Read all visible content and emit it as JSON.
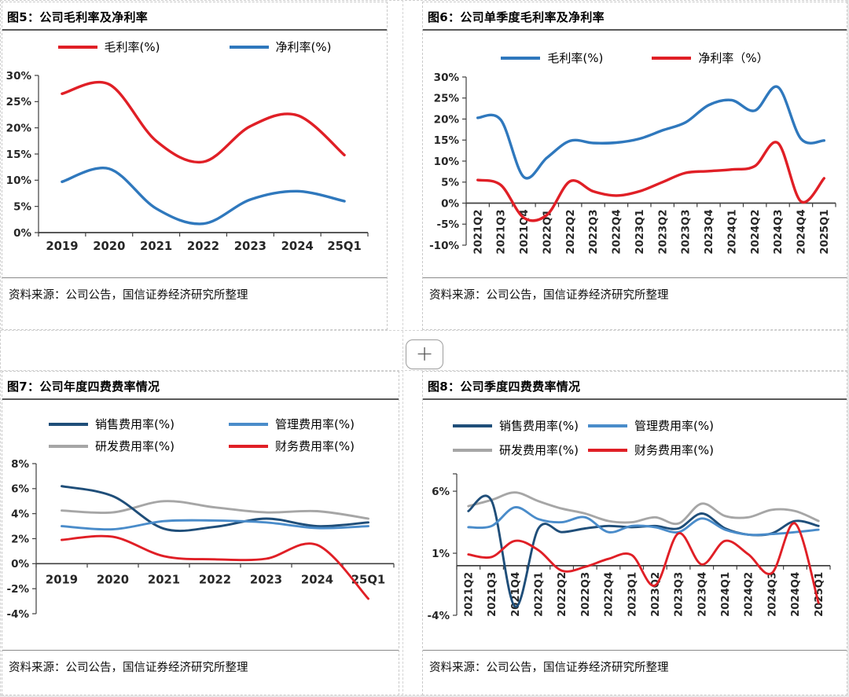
{
  "page": {
    "plus_button_label": "+"
  },
  "panels": [
    {
      "id": "fig5",
      "title": "图5：公司毛利率及净利率",
      "source": "资料来源：公司公告，国信证券经济研究所整理"
    },
    {
      "id": "fig6",
      "title": "图6：公司单季度毛利率及净利率",
      "source": "资料来源：公司公告，国信证券经济研究所整理"
    },
    {
      "id": "fig7",
      "title": "图7：公司年度四费费率情况",
      "source": "资料来源：公司公告，国信证券经济研究所整理"
    },
    {
      "id": "fig8",
      "title": "图8：公司季度四费费率情况",
      "source": "资料来源：公司公告，国信证券经济研究所整理"
    }
  ],
  "chart_data": [
    {
      "type": "line",
      "title": "图5：公司毛利率及净利率",
      "categories": [
        "2019",
        "2020",
        "2021",
        "2022",
        "2023",
        "2024",
        "25Q1"
      ],
      "series": [
        {
          "name": "毛利率(%)",
          "color": "#e01f26",
          "values": [
            26.5,
            28.3,
            17.5,
            13.5,
            20.3,
            22.4,
            14.8
          ]
        },
        {
          "name": "净利率(%)",
          "color": "#2f78bd",
          "values": [
            9.7,
            12.2,
            4.6,
            1.7,
            6.3,
            7.9,
            6.0
          ]
        }
      ],
      "ylim": [
        0,
        30
      ],
      "yticks": [
        0,
        5,
        10,
        15,
        20,
        25,
        30
      ],
      "x_tick_rotation": 0,
      "grid": false,
      "legend_position": "top-center"
    },
    {
      "type": "line",
      "title": "图6：公司单季度毛利率及净利率",
      "categories": [
        "2021Q2",
        "2021Q3",
        "2021Q4",
        "2022Q1",
        "2022Q2",
        "2022Q3",
        "2022Q4",
        "2023Q1",
        "2023Q2",
        "2023Q3",
        "2023Q4",
        "2024Q1",
        "2024Q2",
        "2024Q3",
        "2024Q4",
        "2025Q1"
      ],
      "series": [
        {
          "name": "毛利率(%)",
          "color": "#2f78bd",
          "values": [
            20.3,
            19.8,
            6.2,
            10.8,
            14.8,
            14.3,
            14.4,
            15.3,
            17.3,
            19.2,
            23.3,
            24.5,
            22.0,
            27.6,
            15.3,
            14.9
          ]
        },
        {
          "name": "净利率（%）",
          "color": "#e01f26",
          "values": [
            5.5,
            4.3,
            -3.5,
            -2.8,
            5.2,
            2.8,
            1.8,
            2.8,
            5.0,
            7.2,
            7.6,
            8.0,
            8.8,
            14.3,
            0.4,
            5.9
          ]
        }
      ],
      "ylim": [
        -10,
        30
      ],
      "yticks": [
        -10,
        -5,
        0,
        5,
        10,
        15,
        20,
        25,
        30
      ],
      "x_tick_rotation": -90,
      "grid": false,
      "legend_position": "top-center"
    },
    {
      "type": "line",
      "title": "图7：公司年度四费费率情况",
      "categories": [
        "2019",
        "2020",
        "2021",
        "2022",
        "2023",
        "2024",
        "25Q1"
      ],
      "series": [
        {
          "name": "销售费用率(%)",
          "color": "#1f4e79",
          "values": [
            6.2,
            5.4,
            2.8,
            2.95,
            3.6,
            3.0,
            3.3
          ]
        },
        {
          "name": "管理费用率(%)",
          "color": "#4a8cca",
          "values": [
            3.0,
            2.75,
            3.4,
            3.45,
            3.3,
            2.85,
            3.0
          ]
        },
        {
          "name": "研发费用率(%)",
          "color": "#a6a6a6",
          "values": [
            4.25,
            4.1,
            5.0,
            4.5,
            4.1,
            4.2,
            3.6
          ]
        },
        {
          "name": "财务费用率(%)",
          "color": "#e01f26",
          "values": [
            1.9,
            2.15,
            0.6,
            0.35,
            0.4,
            1.5,
            -2.8
          ]
        }
      ],
      "ylim": [
        -4,
        8
      ],
      "yticks": [
        -4,
        -2,
        0,
        2,
        4,
        6,
        8
      ],
      "x_tick_rotation": 0,
      "grid": false,
      "legend_position": "top-two-column"
    },
    {
      "type": "line",
      "title": "图8：公司季度四费费率情况",
      "categories": [
        "2021Q2",
        "2021Q3",
        "2021Q4",
        "2022Q1",
        "2022Q2",
        "2022Q3",
        "2022Q4",
        "2023Q1",
        "2023Q2",
        "2023Q3",
        "2023Q4",
        "2024Q1",
        "2024Q2",
        "2024Q3",
        "2024Q4",
        "2025Q1"
      ],
      "series": [
        {
          "name": "销售费用率(%)",
          "color": "#1f4e79",
          "values": [
            4.4,
            5.2,
            -3.3,
            3.0,
            2.7,
            3.0,
            3.2,
            3.1,
            3.2,
            3.0,
            4.2,
            3.0,
            2.5,
            2.6,
            3.6,
            3.2
          ]
        },
        {
          "name": "管理费用率(%)",
          "color": "#4a8cca",
          "values": [
            3.1,
            3.2,
            4.7,
            3.75,
            3.5,
            3.9,
            2.7,
            3.2,
            3.1,
            2.7,
            3.8,
            2.9,
            2.5,
            2.55,
            2.7,
            2.9
          ]
        },
        {
          "name": "研发费用率(%)",
          "color": "#a6a6a6",
          "values": [
            4.8,
            5.3,
            5.9,
            5.2,
            4.6,
            4.2,
            3.6,
            3.5,
            3.9,
            3.4,
            5.0,
            4.0,
            3.9,
            4.5,
            4.4,
            3.6
          ]
        },
        {
          "name": "财务费用率(%)",
          "color": "#e01f26",
          "values": [
            0.9,
            0.7,
            2.0,
            1.25,
            -0.4,
            -0.1,
            0.55,
            0.85,
            -1.6,
            2.6,
            0.1,
            2.0,
            0.9,
            -0.6,
            3.4,
            -3.0
          ]
        }
      ],
      "ylim": [
        -4,
        7.4
      ],
      "yticks": [
        -4,
        1,
        6
      ],
      "x_tick_rotation": -90,
      "grid": false,
      "legend_position": "top-two-column"
    }
  ]
}
